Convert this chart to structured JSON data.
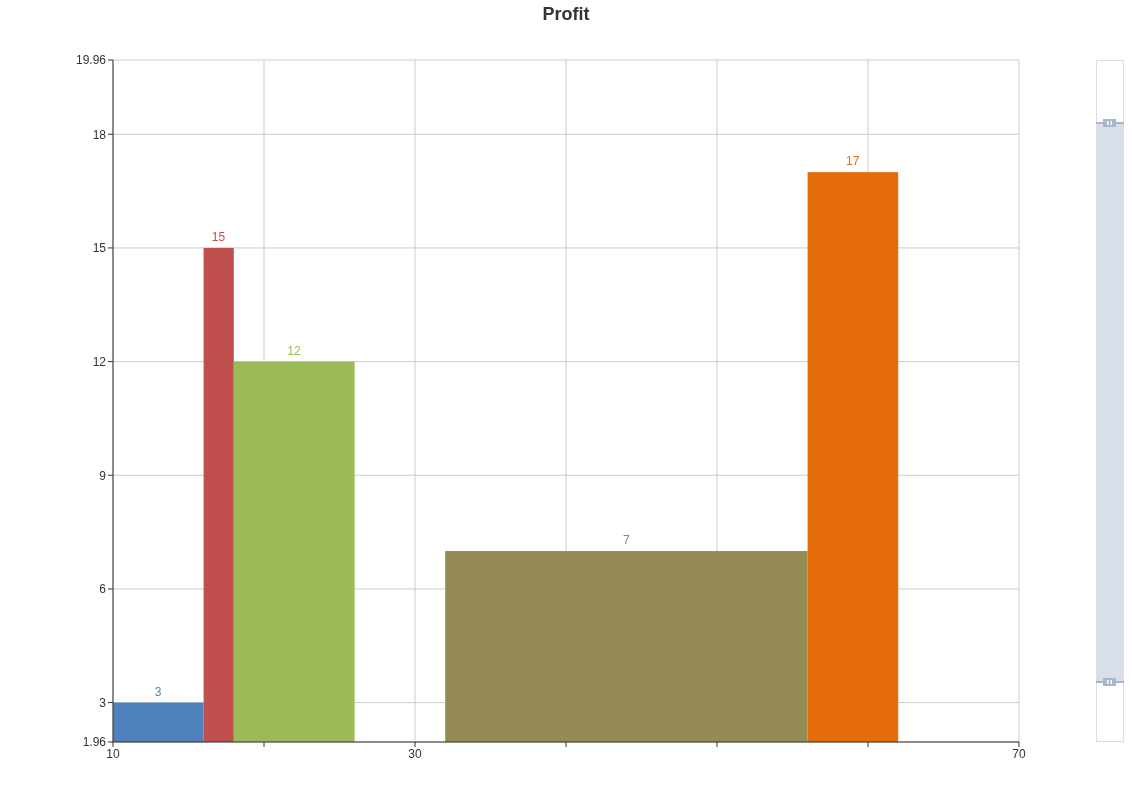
{
  "chart_data": {
    "type": "histogram",
    "title": "Profit",
    "bins": [
      10,
      16,
      18,
      26,
      32,
      56,
      62
    ],
    "values": [
      3,
      15,
      12,
      null,
      7,
      17
    ],
    "colors": [
      "#4f81bd",
      "#c0504d",
      "#9bbb59",
      null,
      "#948a54",
      "#e46c0a"
    ],
    "xlim": [
      10,
      70
    ],
    "xticks": [
      10,
      {
        "value": 20,
        "label": null
      },
      30,
      {
        "value": 40,
        "label": null
      },
      {
        "value": 50,
        "label": null
      },
      {
        "value": 60,
        "label": null
      },
      70
    ],
    "ylim": [
      1.96,
      19.96
    ],
    "yticks": [
      1.96,
      3,
      6,
      9,
      12,
      15,
      18,
      19.96
    ],
    "grid": true,
    "data_labels": true
  }
}
